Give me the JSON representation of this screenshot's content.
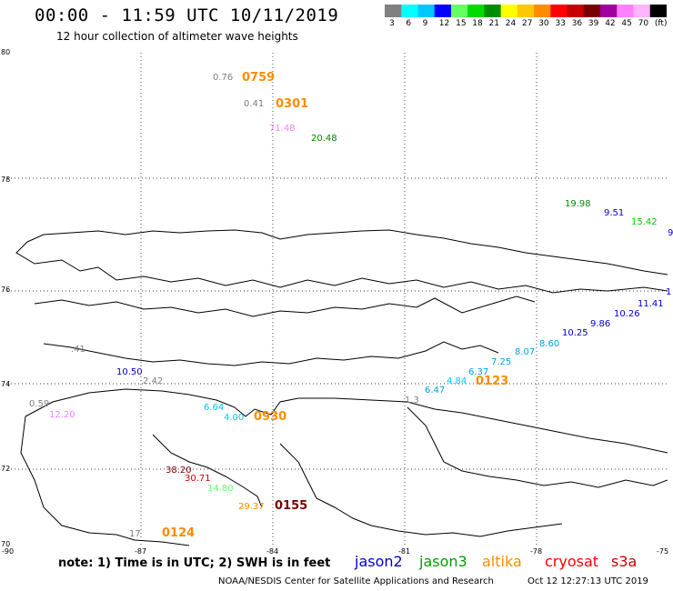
{
  "header": {
    "title": "00:00 - 11:59 UTC 10/11/2019",
    "subtitle": "12 hour collection of altimeter wave heights"
  },
  "colorbar": {
    "colors": [
      "#808080",
      "#00ffff",
      "#00c8ff",
      "#0000ff",
      "#64ff64",
      "#00dc00",
      "#008c00",
      "#ffff00",
      "#ffc800",
      "#ff8c00",
      "#ff0000",
      "#c80000",
      "#780000",
      "#a000a0",
      "#ff80ff",
      "#ffb4ff",
      "#000000"
    ],
    "labels": [
      "3",
      "6",
      "9",
      "12",
      "15",
      "18",
      "21",
      "24",
      "27",
      "30",
      "33",
      "36",
      "39",
      "42",
      "45",
      "70",
      "(ft)"
    ]
  },
  "map": {
    "lat_labels": [
      "80",
      "78",
      "76",
      "74",
      "72",
      "70"
    ],
    "lon_labels": [
      "-90",
      "-87",
      "-84",
      "-81",
      "-78",
      "-75"
    ]
  },
  "observations": [
    {
      "v": "0.76",
      "c": "#808080"
    },
    {
      "v": "0.41",
      "c": "#808080"
    },
    {
      "v": "71.48",
      "c": "#ff80ff"
    },
    {
      "v": "20.48",
      "c": "#008c00"
    },
    {
      "v": "19.98",
      "c": "#008c00"
    },
    {
      "v": "9.51",
      "c": "#0000c8"
    },
    {
      "v": "15.42",
      "c": "#00c800"
    },
    {
      "v": "9",
      "c": "#0000c8"
    },
    {
      "v": "1",
      "c": "#0000c8"
    },
    {
      "v": "11.41",
      "c": "#0000c8"
    },
    {
      "v": "10.26",
      "c": "#0000c8"
    },
    {
      "v": "9.86",
      "c": "#0000c8"
    },
    {
      "v": "10.25",
      "c": "#0000c8"
    },
    {
      "v": "8.60",
      "c": "#00a0dc"
    },
    {
      "v": "8.07",
      "c": "#00a0dc"
    },
    {
      "v": "7.25",
      "c": "#00a0dc"
    },
    {
      "v": "6.37",
      "c": "#00a0dc"
    },
    {
      "v": "4.84",
      "c": "#00c8ff"
    },
    {
      "v": "6.47",
      "c": "#00a0dc"
    },
    {
      "v": "1.3",
      "c": "#808080"
    },
    {
      "v": ".41",
      "c": "#808080"
    },
    {
      "v": "10.50",
      "c": "#0000c8"
    },
    {
      "v": "2.42",
      "c": "#808080"
    },
    {
      "v": "0.59",
      "c": "#808080"
    },
    {
      "v": "12.20",
      "c": "#ff80ff"
    },
    {
      "v": "6.64",
      "c": "#00c8ff"
    },
    {
      "v": "4.00",
      "c": "#00c8ff"
    },
    {
      "v": "38.20",
      "c": "#780000"
    },
    {
      "v": "30.71",
      "c": "#c80000"
    },
    {
      "v": "14.80",
      "c": "#64ff64"
    },
    {
      "v": "29.37",
      "c": "#ff8c00"
    },
    {
      "v": "17",
      "c": "#808080"
    }
  ],
  "pass_times": [
    {
      "t": "0759",
      "c": "#ff8c00"
    },
    {
      "t": "0301",
      "c": "#ff8c00"
    },
    {
      "t": "0123",
      "c": "#ff8c00"
    },
    {
      "t": "0930",
      "c": "#ff8c00"
    },
    {
      "t": "0155",
      "c": "#780000"
    },
    {
      "t": "0124",
      "c": "#ff8c00"
    }
  ],
  "footer": {
    "note": "note: 1) Time is in UTC; 2) SWH is in feet",
    "satellites": [
      {
        "name": "jason2",
        "c": "#0000c8"
      },
      {
        "name": "jason3",
        "c": "#00a000"
      },
      {
        "name": "altika",
        "c": "#ff8c00"
      },
      {
        "name": "cryosat",
        "c": "#ff0000"
      },
      {
        "name": "s3a",
        "c": "#c80000"
      }
    ],
    "credit": "NOAA/NESDIS Center for Satellite Applications and Research",
    "timestamp": "Oct 12 12:27:13 UTC 2019"
  }
}
